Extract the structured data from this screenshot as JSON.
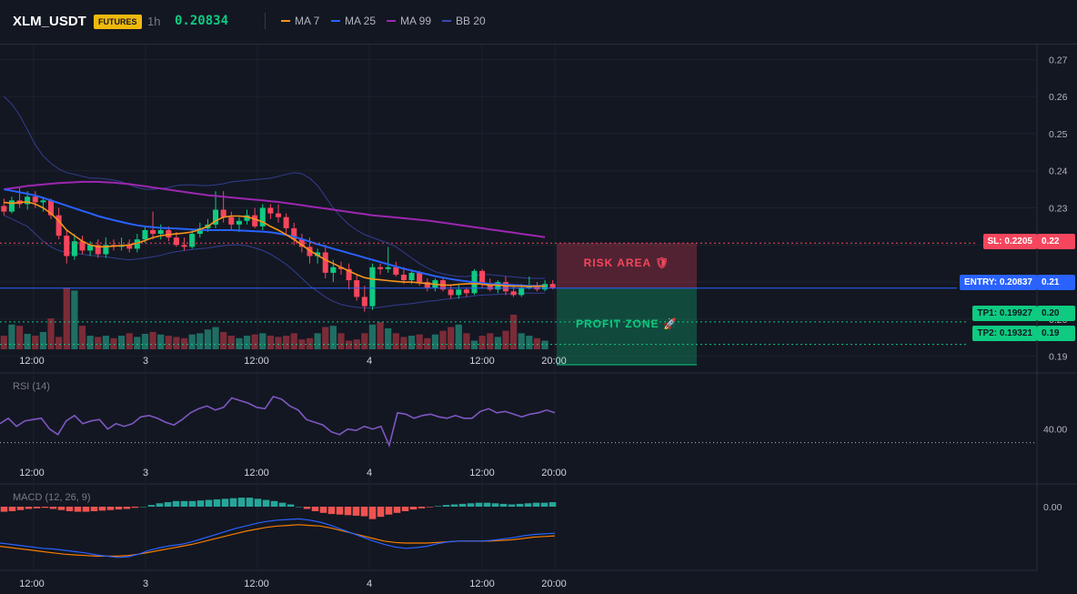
{
  "header": {
    "symbol": "XLM_USDT",
    "badge": "FUTURES",
    "timeframe": "1h",
    "last_price": "0.20834",
    "legend": [
      {
        "label": "MA 7",
        "color": "#f7931a"
      },
      {
        "label": "MA 25",
        "color": "#2962ff"
      },
      {
        "label": "MA 99",
        "color": "#9c27b0"
      },
      {
        "label": "BB 20",
        "color": "#3949ab"
      }
    ]
  },
  "colors": {
    "up": "#26a69a",
    "up_bright": "#0ecb81",
    "down": "#f6465d",
    "vol_up": "#1f6e63",
    "vol_down": "#7b2b37",
    "background": "#131722",
    "grid": "#1e222d"
  },
  "tags": {
    "sl": "SL: 0.2205",
    "sl_axis": "0.22",
    "entry": "ENTRY: 0.20837",
    "entry_axis": "0.21",
    "tp1": "TP1: 0.19927",
    "tp1_axis": "0.20",
    "tp2": "TP2: 0.19321",
    "tp2_axis": "0.19"
  },
  "zones": {
    "risk_label": "RISK AREA 🛡",
    "profit_label": "PROFIT ZONE 🚀"
  },
  "chart_data": [
    {
      "type": "candlestick",
      "title": "XLM_USDT 1h",
      "y_axis_ticks": [
        "0.19",
        "0.20",
        "0.21",
        "0.22",
        "0.23",
        "0.24",
        "0.25",
        "0.26",
        "0.27"
      ],
      "ylim": [
        0.186,
        0.274
      ],
      "x_tick_labels": [
        "12:00",
        "3",
        "12:00",
        "4",
        "12:00",
        "20:00"
      ],
      "levels": {
        "stop_loss": 0.2205,
        "entry": 0.20837,
        "take_profit_1": 0.19927,
        "take_profit_2": 0.19321
      },
      "series_legend": [
        "MA 7",
        "MA 25",
        "MA 99",
        "BB 20"
      ],
      "ohlc": [
        [
          0.2305,
          0.2325,
          0.228,
          0.229
        ],
        [
          0.229,
          0.233,
          0.2285,
          0.232
        ],
        [
          0.232,
          0.2355,
          0.23,
          0.231
        ],
        [
          0.231,
          0.2345,
          0.2295,
          0.233
        ],
        [
          0.233,
          0.2345,
          0.23,
          0.2315
        ],
        [
          0.2315,
          0.233,
          0.229,
          0.232
        ],
        [
          0.232,
          0.2325,
          0.227,
          0.228
        ],
        [
          0.228,
          0.23,
          0.2215,
          0.2225
        ],
        [
          0.2225,
          0.224,
          0.215,
          0.217
        ],
        [
          0.217,
          0.223,
          0.216,
          0.221
        ],
        [
          0.221,
          0.2225,
          0.2175,
          0.2185
        ],
        [
          0.2185,
          0.221,
          0.217,
          0.22
        ],
        [
          0.22,
          0.2215,
          0.2165,
          0.2175
        ],
        [
          0.2175,
          0.222,
          0.2165,
          0.22
        ],
        [
          0.22,
          0.2215,
          0.2185,
          0.2195
        ],
        [
          0.2195,
          0.222,
          0.2185,
          0.22
        ],
        [
          0.22,
          0.2215,
          0.218,
          0.219
        ],
        [
          0.219,
          0.223,
          0.218,
          0.2215
        ],
        [
          0.2215,
          0.225,
          0.2205,
          0.224
        ],
        [
          0.224,
          0.229,
          0.2215,
          0.223
        ],
        [
          0.223,
          0.2255,
          0.2215,
          0.224
        ],
        [
          0.224,
          0.225,
          0.221,
          0.222
        ],
        [
          0.222,
          0.2235,
          0.2195,
          0.22
        ],
        [
          0.22,
          0.222,
          0.2185,
          0.2195
        ],
        [
          0.2195,
          0.224,
          0.219,
          0.223
        ],
        [
          0.223,
          0.226,
          0.222,
          0.2245
        ],
        [
          0.2245,
          0.227,
          0.2235,
          0.2255
        ],
        [
          0.2255,
          0.2345,
          0.2245,
          0.2295
        ],
        [
          0.2295,
          0.2345,
          0.226,
          0.2275
        ],
        [
          0.2275,
          0.229,
          0.224,
          0.2255
        ],
        [
          0.2255,
          0.2275,
          0.2235,
          0.2265
        ],
        [
          0.2265,
          0.2295,
          0.2255,
          0.228
        ],
        [
          0.228,
          0.23,
          0.2245,
          0.225
        ],
        [
          0.225,
          0.231,
          0.224,
          0.23
        ],
        [
          0.23,
          0.231,
          0.227,
          0.2285
        ],
        [
          0.2285,
          0.231,
          0.226,
          0.2275
        ],
        [
          0.2275,
          0.2285,
          0.223,
          0.2245
        ],
        [
          0.2245,
          0.226,
          0.22,
          0.2215
        ],
        [
          0.2215,
          0.223,
          0.218,
          0.2195
        ],
        [
          0.2195,
          0.222,
          0.215,
          0.217
        ],
        [
          0.217,
          0.219,
          0.215,
          0.218
        ],
        [
          0.218,
          0.22,
          0.211,
          0.2125
        ],
        [
          0.2125,
          0.216,
          0.21,
          0.214
        ],
        [
          0.214,
          0.2155,
          0.212,
          0.2135
        ],
        [
          0.2135,
          0.215,
          0.208,
          0.2105
        ],
        [
          0.2105,
          0.212,
          0.205,
          0.206
        ],
        [
          0.206,
          0.209,
          0.202,
          0.2035
        ],
        [
          0.2035,
          0.215,
          0.2025,
          0.214
        ],
        [
          0.214,
          0.215,
          0.212,
          0.2135
        ],
        [
          0.2135,
          0.2195,
          0.2125,
          0.214
        ],
        [
          0.214,
          0.2155,
          0.2115,
          0.212
        ],
        [
          0.212,
          0.214,
          0.2095,
          0.2105
        ],
        [
          0.2105,
          0.213,
          0.2095,
          0.2125
        ],
        [
          0.2125,
          0.213,
          0.209,
          0.21
        ],
        [
          0.21,
          0.211,
          0.2075,
          0.2085
        ],
        [
          0.2085,
          0.211,
          0.2075,
          0.2105
        ],
        [
          0.2105,
          0.211,
          0.2075,
          0.208
        ],
        [
          0.208,
          0.209,
          0.2055,
          0.2065
        ],
        [
          0.2065,
          0.2095,
          0.2055,
          0.208
        ],
        [
          0.208,
          0.2085,
          0.206,
          0.207
        ],
        [
          0.207,
          0.2135,
          0.2065,
          0.213
        ],
        [
          0.213,
          0.2135,
          0.2085,
          0.2095
        ],
        [
          0.2095,
          0.211,
          0.2075,
          0.208
        ],
        [
          0.208,
          0.2105,
          0.207,
          0.21
        ],
        [
          0.21,
          0.2115,
          0.2065,
          0.2075
        ],
        [
          0.2075,
          0.209,
          0.206,
          0.2065
        ],
        [
          0.2065,
          0.2095,
          0.206,
          0.2085
        ],
        [
          0.2085,
          0.2115,
          0.208,
          0.209
        ],
        [
          0.209,
          0.21,
          0.2075,
          0.208
        ],
        [
          0.208,
          0.2105,
          0.2075,
          0.2095
        ],
        [
          0.2095,
          0.2105,
          0.208,
          0.2085
        ]
      ],
      "volume_relative": [
        0.22,
        0.4,
        0.38,
        0.25,
        0.22,
        0.28,
        0.5,
        0.2,
        1.0,
        0.95,
        0.38,
        0.22,
        0.2,
        0.22,
        0.18,
        0.22,
        0.26,
        0.2,
        0.25,
        0.28,
        0.24,
        0.22,
        0.2,
        0.18,
        0.24,
        0.26,
        0.32,
        0.36,
        0.28,
        0.22,
        0.18,
        0.22,
        0.24,
        0.26,
        0.22,
        0.2,
        0.22,
        0.26,
        0.16,
        0.18,
        0.26,
        0.36,
        0.38,
        0.26,
        0.14,
        0.16,
        0.26,
        0.4,
        0.44,
        0.34,
        0.26,
        0.2,
        0.22,
        0.24,
        0.18,
        0.24,
        0.3,
        0.36,
        0.4,
        0.26,
        0.14,
        0.22,
        0.26,
        0.2,
        0.3,
        0.56,
        0.26,
        0.22,
        0.18,
        0.14
      ],
      "ma7": [
        0.2315,
        0.2312,
        0.2315,
        0.2316,
        0.231,
        0.23,
        0.2285,
        0.2265,
        0.224,
        0.2225,
        0.221,
        0.22,
        0.2195,
        0.2195,
        0.2197,
        0.2198,
        0.22,
        0.2205,
        0.2212,
        0.222,
        0.2225,
        0.2228,
        0.223,
        0.2232,
        0.2235,
        0.2242,
        0.225,
        0.2265,
        0.2275,
        0.2278,
        0.2278,
        0.2276,
        0.227,
        0.2262,
        0.225,
        0.224,
        0.2228,
        0.2215,
        0.22,
        0.2185,
        0.2172,
        0.216,
        0.215,
        0.214,
        0.213,
        0.212,
        0.2112,
        0.2108,
        0.2106,
        0.2104,
        0.2102,
        0.21,
        0.21,
        0.2098,
        0.2096,
        0.2094,
        0.2092,
        0.2092,
        0.2094,
        0.2095,
        0.2096,
        0.2094,
        0.2092,
        0.2092,
        0.209,
        0.2089,
        0.2089,
        0.2088,
        0.2089,
        0.2089
      ],
      "ma25": [
        0.235,
        0.2346,
        0.2342,
        0.2338,
        0.2333,
        0.2327,
        0.232,
        0.2313,
        0.2306,
        0.2299,
        0.2292,
        0.2285,
        0.2278,
        0.2272,
        0.2267,
        0.2262,
        0.2257,
        0.2253,
        0.225,
        0.2248,
        0.2246,
        0.2245,
        0.2244,
        0.2243,
        0.2242,
        0.2241,
        0.224,
        0.224,
        0.224,
        0.224,
        0.2239,
        0.2238,
        0.2237,
        0.2236,
        0.2234,
        0.2231,
        0.2227,
        0.2222,
        0.2216,
        0.2209,
        0.2202,
        0.2196,
        0.219,
        0.2184,
        0.2178,
        0.2172,
        0.2166,
        0.216,
        0.2154,
        0.2148,
        0.2142,
        0.2136,
        0.2131,
        0.2126,
        0.2121,
        0.2116,
        0.2112,
        0.2108,
        0.2105,
        0.2102,
        0.2099,
        0.2097,
        0.2095,
        0.2094,
        0.2093,
        0.2092,
        0.2091,
        0.209,
        0.209,
        0.209
      ],
      "ma99": [
        0.235,
        0.2353,
        0.2356,
        0.2359,
        0.2361,
        0.2363,
        0.2365,
        0.2367,
        0.2368,
        0.2369,
        0.237,
        0.237,
        0.237,
        0.2369,
        0.2368,
        0.2366,
        0.2364,
        0.2361,
        0.2358,
        0.2355,
        0.2352,
        0.2349,
        0.2346,
        0.2343,
        0.234,
        0.2337,
        0.2334,
        0.2332,
        0.233,
        0.2328,
        0.2326,
        0.2324,
        0.2322,
        0.232,
        0.2318,
        0.2316,
        0.2313,
        0.231,
        0.2307,
        0.2304,
        0.2301,
        0.2298,
        0.2295,
        0.2292,
        0.2289,
        0.2286,
        0.2283,
        0.228,
        0.2278,
        0.2276,
        0.2274,
        0.2272,
        0.227,
        0.2268,
        0.2266,
        0.2263,
        0.226,
        0.2257,
        0.2254,
        0.2251,
        0.2248,
        0.2245,
        0.2242,
        0.2239,
        0.2236,
        0.2233,
        0.223,
        0.2227,
        0.2224,
        0.2221
      ],
      "bb_upper": [
        0.26,
        0.258,
        0.255,
        0.251,
        0.247,
        0.244,
        0.242,
        0.2405,
        0.2395,
        0.239,
        0.2385,
        0.238,
        0.238,
        0.2378,
        0.2375,
        0.237,
        0.2362,
        0.2355,
        0.235,
        0.235,
        0.2352,
        0.2355,
        0.236,
        0.2362,
        0.2362,
        0.236,
        0.236,
        0.2362,
        0.2365,
        0.237,
        0.2372,
        0.2374,
        0.2376,
        0.2378,
        0.238,
        0.2385,
        0.239,
        0.2395,
        0.2392,
        0.238,
        0.236,
        0.233,
        0.23,
        0.2275,
        0.2255,
        0.224,
        0.2228,
        0.222,
        0.2212,
        0.2205,
        0.2195,
        0.218,
        0.2165,
        0.215,
        0.2138,
        0.2128,
        0.2122,
        0.2118,
        0.2115,
        0.2115,
        0.2118,
        0.212,
        0.212,
        0.2118,
        0.2116,
        0.2114,
        0.2112,
        0.211,
        0.211,
        0.211
      ],
      "bb_lower": [
        0.228,
        0.227,
        0.226,
        0.225,
        0.223,
        0.221,
        0.2195,
        0.2185,
        0.218,
        0.2178,
        0.2175,
        0.2172,
        0.217,
        0.2168,
        0.2165,
        0.2162,
        0.216,
        0.2162,
        0.2165,
        0.2168,
        0.2172,
        0.2178,
        0.2182,
        0.2185,
        0.2188,
        0.219,
        0.2192,
        0.2195,
        0.2198,
        0.22,
        0.22,
        0.2198,
        0.2192,
        0.2185,
        0.2175,
        0.2162,
        0.2148,
        0.213,
        0.211,
        0.209,
        0.2075,
        0.206,
        0.2048,
        0.204,
        0.2035,
        0.2032,
        0.203,
        0.203,
        0.2032,
        0.2035,
        0.2038,
        0.204,
        0.2042,
        0.2045,
        0.2048,
        0.205,
        0.2053,
        0.2055,
        0.2058,
        0.206,
        0.2063,
        0.2065,
        0.2066,
        0.2067,
        0.2068,
        0.2069,
        0.207,
        0.207,
        0.207,
        0.207
      ]
    },
    {
      "type": "line",
      "title": "RSI (14)",
      "ylim": [
        0,
        100
      ],
      "y_tick_labels": [
        "40.00"
      ],
      "reference_line": 30,
      "x_tick_labels": [
        "12:00",
        "3",
        "12:00",
        "4",
        "12:00",
        "20:00"
      ],
      "values": [
        44,
        48,
        42,
        46,
        47,
        48,
        40,
        36,
        46,
        50,
        44,
        46,
        47,
        40,
        44,
        42,
        44,
        49,
        50,
        48,
        45,
        43,
        47,
        52,
        55,
        57,
        54,
        56,
        63,
        61,
        59,
        56,
        55,
        64,
        62,
        57,
        54,
        47,
        45,
        43,
        38,
        36,
        40,
        39,
        42,
        40,
        42,
        28,
        52,
        51,
        48,
        50,
        51,
        49,
        48,
        50,
        48,
        48,
        53,
        55,
        52,
        53,
        51,
        49,
        51,
        52,
        54,
        52
      ],
      "series_color": "#7e57c2"
    },
    {
      "type": "bar",
      "title": "MACD (12, 26, 9)",
      "y_tick_labels": [
        "0.00"
      ],
      "x_tick_labels": [
        "12:00",
        "3",
        "12:00",
        "4",
        "12:00",
        "20:00"
      ],
      "histogram": [
        -0.9,
        -0.8,
        -0.6,
        -0.4,
        -0.3,
        -0.2,
        -0.4,
        -0.6,
        -0.8,
        -0.9,
        -0.9,
        -0.8,
        -0.7,
        -0.6,
        -0.5,
        -0.4,
        -0.2,
        0.0,
        0.3,
        0.6,
        0.8,
        1.0,
        1.0,
        1.0,
        1.1,
        1.2,
        1.3,
        1.4,
        1.5,
        1.6,
        1.6,
        1.4,
        1.2,
        1.0,
        0.7,
        0.4,
        0.0,
        -0.4,
        -0.8,
        -1.1,
        -1.3,
        -1.4,
        -1.5,
        -1.6,
        -1.7,
        -2.2,
        -1.8,
        -1.4,
        -1.1,
        -0.8,
        -0.5,
        -0.3,
        -0.1,
        0.1,
        0.3,
        0.4,
        0.5,
        0.6,
        0.7,
        0.7,
        0.6,
        0.5,
        0.4,
        0.5,
        0.6,
        0.7,
        0.7,
        0.8
      ],
      "macd_line": [
        -2.5,
        -2.7,
        -2.9,
        -3.1,
        -3.3,
        -3.4,
        -3.6,
        -3.8,
        -4.0,
        -4.3,
        -4.5,
        -4.7,
        -4.6,
        -4.2,
        -3.6,
        -3.2,
        -2.9,
        -2.7,
        -2.3,
        -1.8,
        -1.3,
        -0.8,
        -0.3,
        0.1,
        0.5,
        0.8,
        1.0,
        1.1,
        1.2,
        1.0,
        0.7,
        0.2,
        -0.4,
        -1.0,
        -1.6,
        -2.2,
        -2.7,
        -3.1,
        -3.3,
        -3.2,
        -3.0,
        -2.6,
        -2.3,
        -2.2,
        -2.2,
        -2.2,
        -2.1,
        -1.9,
        -1.7,
        -1.4,
        -1.2,
        -1.1,
        -1.0
      ],
      "signal_line": [
        -3.0,
        -3.2,
        -3.4,
        -3.6,
        -3.8,
        -4.0,
        -4.2,
        -4.3,
        -4.4,
        -4.5,
        -4.5,
        -4.5,
        -4.4,
        -4.2,
        -3.9,
        -3.6,
        -3.3,
        -3.0,
        -2.7,
        -2.3,
        -1.9,
        -1.5,
        -1.1,
        -0.7,
        -0.4,
        -0.1,
        0.1,
        0.2,
        0.3,
        0.2,
        0.1,
        -0.2,
        -0.6,
        -1.0,
        -1.4,
        -1.8,
        -2.2,
        -2.4,
        -2.5,
        -2.5,
        -2.5,
        -2.4,
        -2.3,
        -2.2,
        -2.2,
        -2.2,
        -2.2,
        -2.1,
        -2.0,
        -1.8,
        -1.6,
        -1.5,
        -1.4
      ],
      "colors": {
        "hist_up": "#26a69a",
        "hist_down": "#ef5350",
        "macd": "#2962ff",
        "signal": "#f57c00"
      }
    }
  ]
}
